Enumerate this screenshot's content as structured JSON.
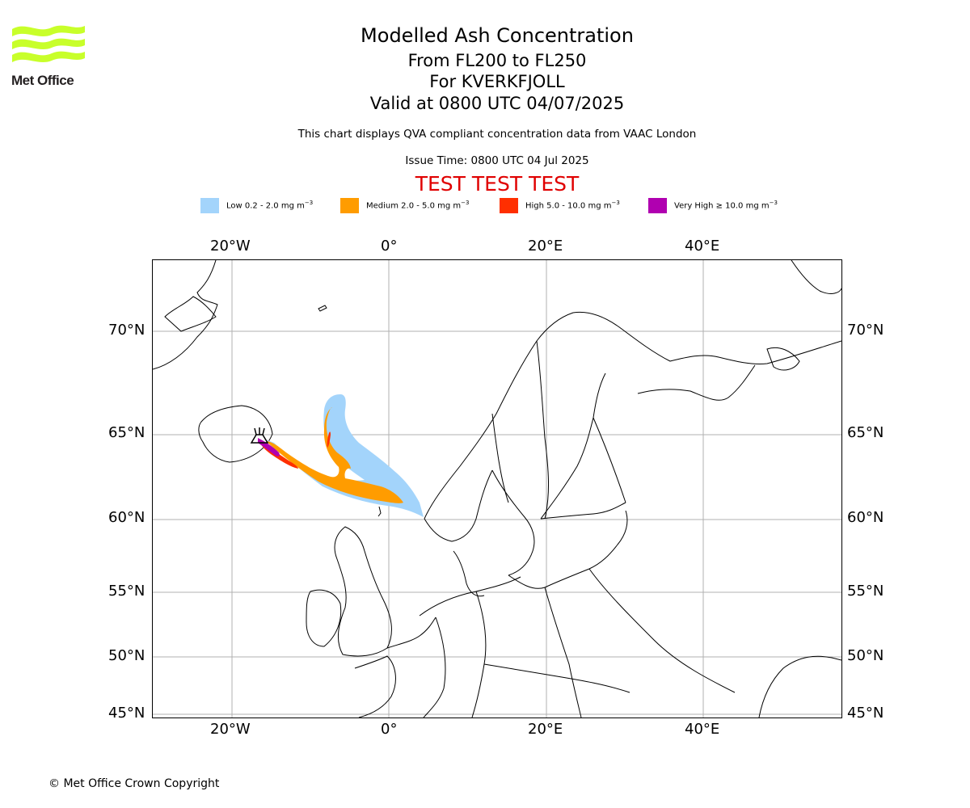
{
  "header": {
    "title": "Modelled Ash Concentration",
    "levels": "From FL200 to FL250",
    "volcano": "For KVERKFJOLL",
    "valid": "Valid at 0800 UTC 04/07/2025",
    "description": "This chart displays QVA compliant concentration data from VAAC London",
    "issue_time": "Issue Time: 0800 UTC 04 Jul 2025",
    "test_banner": "TEST TEST TEST"
  },
  "logo": {
    "text": "Met Office",
    "color": "#c8ff2a"
  },
  "legend": [
    {
      "label": "Low 0.2 - 2.0 mg m",
      "color": "#a3d4fb"
    },
    {
      "label": "Medium 2.0 - 5.0 mg m",
      "color": "#ff9c00"
    },
    {
      "label": "High 5.0 - 10.0 mg m",
      "color": "#ff2f00"
    },
    {
      "label": "Very High ≥ 10.0 mg m",
      "color": "#b000b0"
    }
  ],
  "legend_unit_exp": "−3",
  "axes": {
    "lon_labels": [
      "20°W",
      "0°",
      "20°E",
      "40°E"
    ],
    "lat_labels": [
      "70°N",
      "65°N",
      "60°N",
      "55°N",
      "50°N",
      "45°N"
    ]
  },
  "footer": {
    "copyright": "© Met Office Crown Copyright"
  }
}
